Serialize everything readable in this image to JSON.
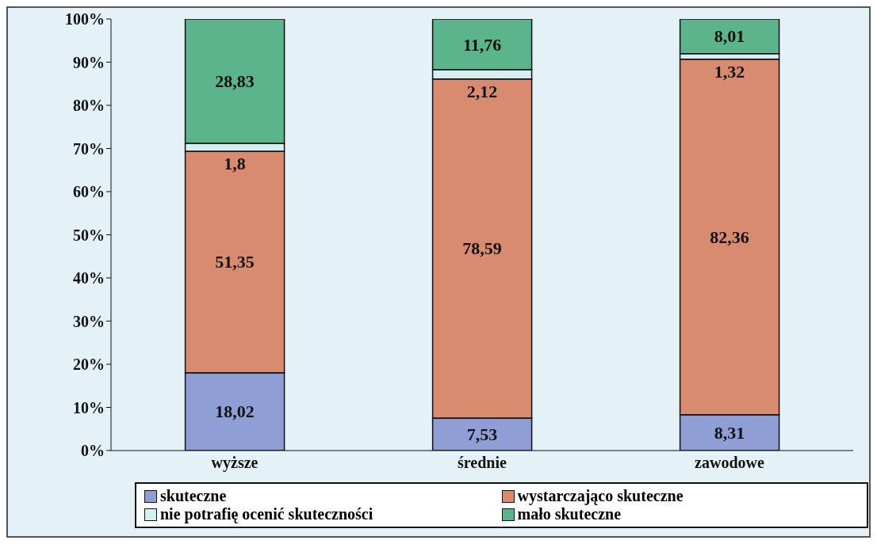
{
  "chart_data": {
    "type": "bar",
    "stacked": true,
    "categories": [
      "wyższe",
      "średnie",
      "zawodowe"
    ],
    "series": [
      {
        "name": "skuteczne",
        "color": "#8f9fd6",
        "values": [
          18.02,
          7.53,
          8.31
        ],
        "value_labels": [
          "18,02",
          "7,53",
          "8,31"
        ]
      },
      {
        "name": "wystarczająco skuteczne",
        "color": "#d98b70",
        "values": [
          51.35,
          78.59,
          82.36
        ],
        "value_labels": [
          "51,35",
          "78,59",
          "82,36"
        ]
      },
      {
        "name": "nie potrafię ocenić skuteczności",
        "color": "#d6eef0",
        "values": [
          1.8,
          2.12,
          1.32
        ],
        "value_labels": [
          "1,8",
          "2,12",
          "1,32"
        ]
      },
      {
        "name": "mało skuteczne",
        "color": "#5cb48c",
        "values": [
          28.83,
          11.76,
          8.01
        ],
        "value_labels": [
          "28,83",
          "11,76",
          "8,01"
        ]
      }
    ],
    "ylim": [
      0,
      100
    ],
    "yticks": [
      {
        "value": 0,
        "label": "0%"
      },
      {
        "value": 10,
        "label": "10%"
      },
      {
        "value": 20,
        "label": "20%"
      },
      {
        "value": 30,
        "label": "30%"
      },
      {
        "value": 40,
        "label": "40%"
      },
      {
        "value": 50,
        "label": "50%"
      },
      {
        "value": 60,
        "label": "60%"
      },
      {
        "value": 70,
        "label": "70%"
      },
      {
        "value": 80,
        "label": "80%"
      },
      {
        "value": 90,
        "label": "90%"
      },
      {
        "value": 100,
        "label": "100%"
      }
    ],
    "grid": false,
    "legend": "bottom"
  }
}
